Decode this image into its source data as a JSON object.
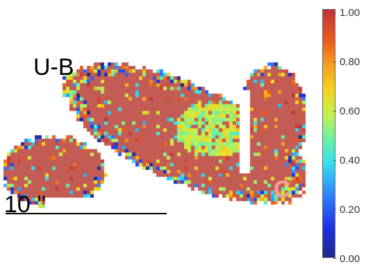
{
  "map": {
    "label": "U-B",
    "panel_letter": "C",
    "scale_label": "10 ''"
  },
  "colorbar": {
    "ticks": [
      "1.00",
      "0.80",
      "0.60",
      "0.40",
      "0.20",
      "0.00"
    ],
    "min": 0.0,
    "max": 1.0
  },
  "colors": {
    "dominant": "#c25c55",
    "core": "#8ef0b0",
    "panel_letter": "#f7a19a"
  }
}
